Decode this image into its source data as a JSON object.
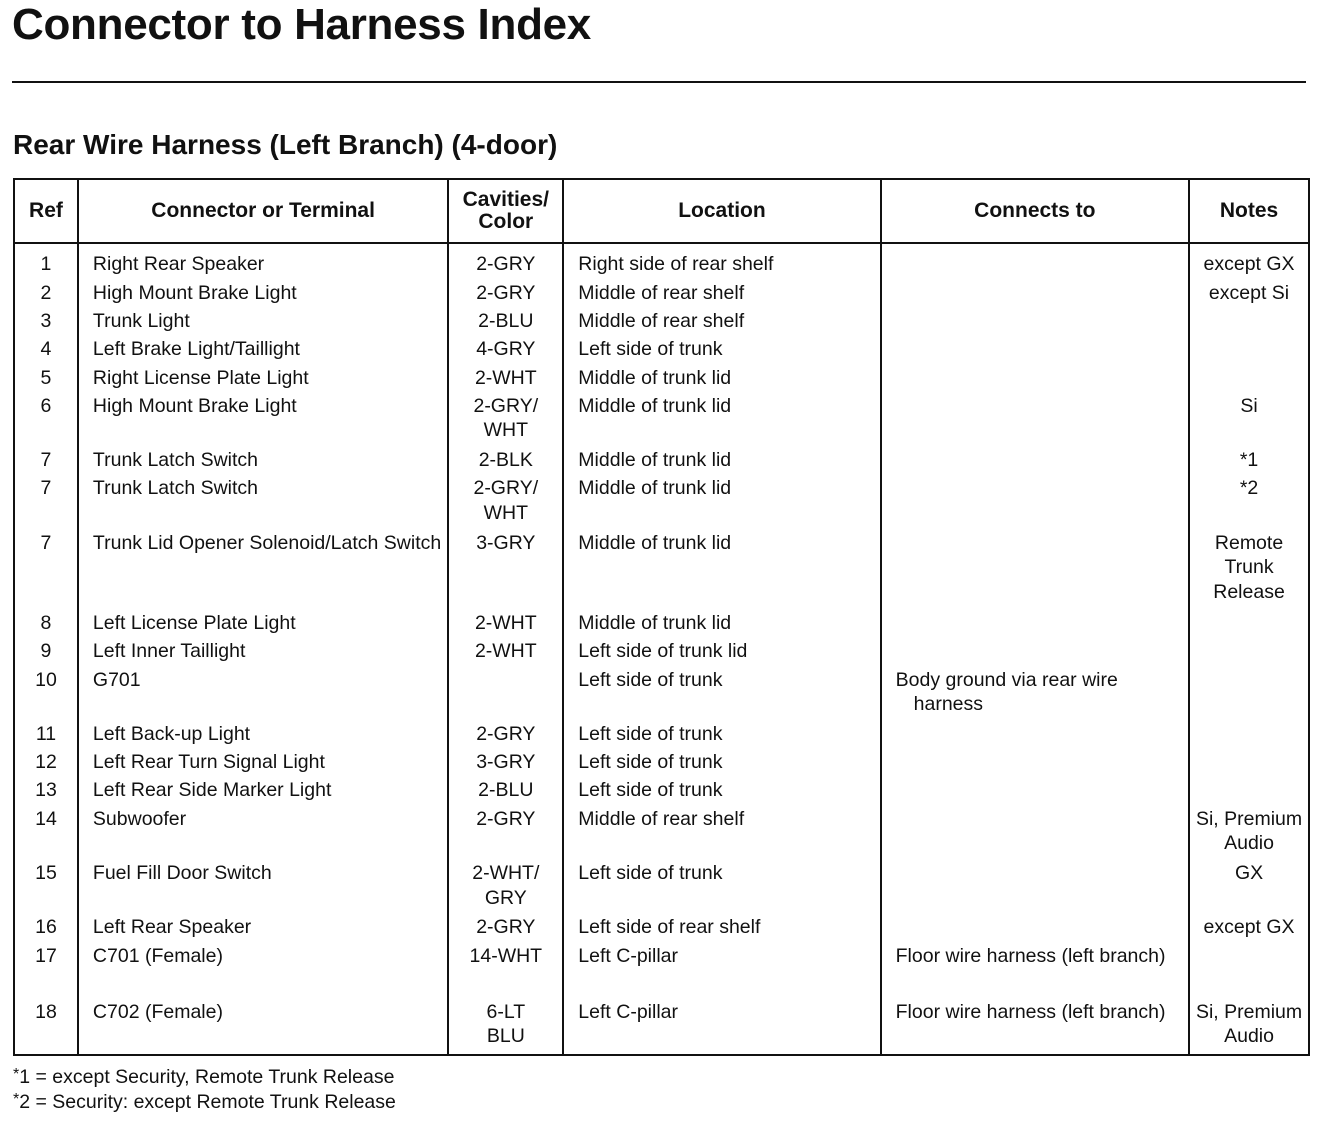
{
  "title": "Connector to Harness Index",
  "subtitle": "Rear Wire Harness (Left Branch) (4-door)",
  "columns": [
    "Ref",
    "Connector or Terminal",
    "Cavities/ Color",
    "Location",
    "Connects to",
    "Notes"
  ],
  "rows": [
    {
      "ref": "1",
      "connector": "Right Rear Speaker",
      "color": "2-GRY",
      "location": "Right side of rear shelf",
      "connects": "",
      "notes": "except GX"
    },
    {
      "ref": "2",
      "connector": "High Mount Brake Light",
      "color": "2-GRY",
      "location": "Middle of rear shelf",
      "connects": "",
      "notes": "except Si"
    },
    {
      "ref": "3",
      "connector": "Trunk Light",
      "color": "2-BLU",
      "location": "Middle of rear shelf",
      "connects": "",
      "notes": ""
    },
    {
      "ref": "4",
      "connector": "Left Brake Light/Taillight",
      "color": "4-GRY",
      "location": "Left side of trunk",
      "connects": "",
      "notes": ""
    },
    {
      "ref": "5",
      "connector": "Right License Plate Light",
      "color": "2-WHT",
      "location": "Middle of trunk lid",
      "connects": "",
      "notes": ""
    },
    {
      "ref": "6",
      "connector": "High Mount Brake Light",
      "color": "2-GRY/ WHT",
      "location": "Middle of trunk lid",
      "connects": "",
      "notes": "Si"
    },
    {
      "ref": "7",
      "connector": "Trunk Latch Switch",
      "color": "2-BLK",
      "location": "Middle of trunk lid",
      "connects": "",
      "notes": "*1"
    },
    {
      "ref": "7",
      "connector": "Trunk Latch Switch",
      "color": "2-GRY/ WHT",
      "location": "Middle of trunk lid",
      "connects": "",
      "notes": "*2"
    },
    {
      "ref": "7",
      "connector": "Trunk Lid Opener Solenoid/Latch Switch",
      "color": "3-GRY",
      "location": "Middle of trunk lid",
      "connects": "",
      "notes": "Remote Trunk Release"
    },
    {
      "ref": "8",
      "connector": "Left License Plate Light",
      "color": "2-WHT",
      "location": "Middle of trunk lid",
      "connects": "",
      "notes": ""
    },
    {
      "ref": "9",
      "connector": "Left Inner Taillight",
      "color": "2-WHT",
      "location": "Left side of trunk lid",
      "connects": "",
      "notes": ""
    },
    {
      "ref": "10",
      "connector": "G701",
      "color": "",
      "location": "Left side of trunk",
      "connects": "Body ground via rear wire harness",
      "notes": ""
    },
    {
      "ref": "11",
      "connector": "Left Back-up Light",
      "color": "2-GRY",
      "location": "Left side of trunk",
      "connects": "",
      "notes": ""
    },
    {
      "ref": "12",
      "connector": "Left Rear Turn Signal Light",
      "color": "3-GRY",
      "location": "Left side of trunk",
      "connects": "",
      "notes": ""
    },
    {
      "ref": "13",
      "connector": "Left Rear Side Marker Light",
      "color": "2-BLU",
      "location": "Left side of trunk",
      "connects": "",
      "notes": ""
    },
    {
      "ref": "14",
      "connector": "Subwoofer",
      "color": "2-GRY",
      "location": "Middle of rear shelf",
      "connects": "",
      "notes": "Si, Premium Audio"
    },
    {
      "ref": "15",
      "connector": "Fuel Fill Door Switch",
      "color": "2-WHT/ GRY",
      "location": "Left side of trunk",
      "connects": "",
      "notes": "GX"
    },
    {
      "ref": "16",
      "connector": "Left Rear Speaker",
      "color": "2-GRY",
      "location": "Left side of rear shelf",
      "connects": "",
      "notes": "except GX"
    },
    {
      "ref": "17",
      "connector": "C701 (Female)",
      "color": "14-WHT",
      "location": "Left C-pillar",
      "connects": "Floor wire harness (left branch)",
      "notes": ""
    },
    {
      "ref": "18",
      "connector": "C702 (Female)",
      "color": "6-LT BLU",
      "location": "Left C-pillar",
      "connects": "Floor wire harness (left branch)",
      "notes": "Si, Premium Audio"
    }
  ],
  "footnotes": [
    {
      "mark": "*",
      "text": "1 = except Security, Remote Trunk Release"
    },
    {
      "mark": "*",
      "text": "2 = Security: except Remote Trunk Release"
    }
  ]
}
